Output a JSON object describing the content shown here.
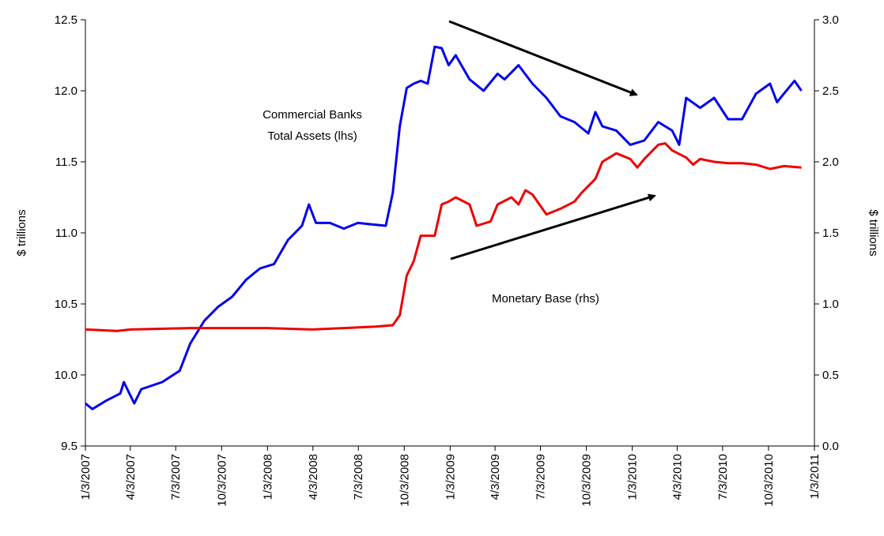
{
  "chart_data": {
    "type": "line",
    "y_label": "$ trillions",
    "y2_label": "$ trillions",
    "annotations": [
      [
        "Commercial Banks",
        "Total Assets (lhs)"
      ],
      [
        "Monetary Base (rhs)"
      ]
    ],
    "xlim": [
      "1/3/2007",
      "1/3/2011"
    ],
    "xticks": [
      "1/3/2007",
      "4/3/2007",
      "7/3/2007",
      "10/3/2007",
      "1/3/2008",
      "4/3/2008",
      "7/3/2008",
      "10/3/2008",
      "1/3/2009",
      "4/3/2009",
      "7/3/2009",
      "10/3/2009",
      "1/3/2010",
      "4/3/2010",
      "7/3/2010",
      "10/3/2010",
      "1/3/2011"
    ],
    "ylim": [
      9.5,
      12.5
    ],
    "yticks": [
      9.5,
      {
        "value": 10,
        "label": "10.0"
      },
      10.5,
      {
        "value": 11,
        "label": "11.0"
      },
      11.5,
      {
        "value": 12,
        "label": "12.0"
      },
      12.5
    ],
    "y2lim": [
      0,
      3
    ],
    "y2ticks": [
      {
        "value": 0,
        "label": "0.0"
      },
      0.5,
      {
        "value": 1,
        "label": "1.0"
      },
      1.5,
      {
        "value": 2,
        "label": "2.0"
      },
      2.5,
      {
        "value": 3,
        "label": "3.0"
      }
    ],
    "series": [
      {
        "name": "Commercial Banks Total Assets",
        "color": "#0000ee",
        "axis": "y",
        "x": [
          "1/3/2007",
          "1/17/2007",
          "2/14/2007",
          "3/14/2007",
          "3/21/2007",
          "4/11/2007",
          "4/25/2007",
          "6/6/2007",
          "7/11/2007",
          "8/1/2007",
          "8/29/2007",
          "9/26/2007",
          "10/24/2007",
          "11/21/2007",
          "12/19/2007",
          "1/16/2008",
          "2/13/2008",
          "3/12/2008",
          "3/26/2008",
          "4/9/2008",
          "5/7/2008",
          "6/4/2008",
          "7/2/2008",
          "7/30/2008",
          "8/27/2008",
          "9/10/2008",
          "9/24/2008",
          "10/8/2008",
          "10/22/2008",
          "11/5/2008",
          "11/19/2008",
          "12/3/2008",
          "12/17/2008",
          "12/31/2008",
          "1/14/2009",
          "2/11/2009",
          "3/11/2009",
          "4/8/2009",
          "4/22/2009",
          "5/20/2009",
          "6/17/2009",
          "7/15/2009",
          "8/12/2009",
          "9/9/2009",
          "10/7/2009",
          "10/21/2009",
          "11/4/2009",
          "12/2/2009",
          "12/30/2009",
          "1/27/2010",
          "2/24/2010",
          "3/24/2010",
          "4/7/2010",
          "4/21/2010",
          "5/19/2010",
          "6/16/2010",
          "7/14/2010",
          "8/11/2010",
          "9/8/2010",
          "10/6/2010",
          "10/20/2010",
          "11/3/2010",
          "11/24/2010",
          "12/8/2010"
        ],
        "values": [
          9.8,
          9.76,
          9.82,
          9.87,
          9.95,
          9.8,
          9.9,
          9.95,
          10.03,
          10.22,
          10.38,
          10.48,
          10.55,
          10.67,
          10.75,
          10.78,
          10.95,
          11.05,
          11.2,
          11.07,
          11.07,
          11.03,
          11.07,
          11.06,
          11.05,
          11.28,
          11.75,
          12.02,
          12.05,
          12.07,
          12.05,
          12.31,
          12.3,
          12.18,
          12.25,
          12.08,
          12.0,
          12.12,
          12.08,
          12.18,
          12.05,
          11.95,
          11.82,
          11.78,
          11.7,
          11.85,
          11.75,
          11.72,
          11.62,
          11.65,
          11.78,
          11.72,
          11.62,
          11.95,
          11.88,
          11.95,
          11.8,
          11.8,
          11.98,
          12.05,
          11.92,
          11.98,
          12.07,
          12.0
        ]
      },
      {
        "name": "Monetary Base",
        "color": "#ee0000",
        "axis": "y2",
        "x": [
          "1/3/2007",
          "3/7/2007",
          "4/4/2007",
          "8/1/2007",
          "1/2/2008",
          "4/2/2008",
          "6/4/2008",
          "8/6/2008",
          "9/10/2008",
          "9/24/2008",
          "10/8/2008",
          "10/22/2008",
          "11/5/2008",
          "12/3/2008",
          "12/17/2008",
          "12/31/2008",
          "1/14/2009",
          "2/11/2009",
          "2/25/2009",
          "3/25/2009",
          "4/8/2009",
          "5/6/2009",
          "5/20/2009",
          "6/3/2009",
          "6/17/2009",
          "7/15/2009",
          "8/12/2009",
          "9/9/2009",
          "9/23/2009",
          "10/21/2009",
          "11/4/2009",
          "12/2/2009",
          "12/30/2009",
          "1/13/2010",
          "1/27/2010",
          "2/24/2010",
          "3/10/2010",
          "3/24/2010",
          "4/21/2010",
          "5/5/2010",
          "5/19/2010",
          "6/16/2010",
          "7/14/2010",
          "8/11/2010",
          "9/8/2010",
          "10/6/2010",
          "11/3/2010",
          "12/8/2010"
        ],
        "values": [
          0.82,
          0.81,
          0.82,
          0.83,
          0.83,
          0.82,
          0.83,
          0.84,
          0.85,
          0.92,
          1.2,
          1.3,
          1.48,
          1.48,
          1.7,
          1.72,
          1.75,
          1.7,
          1.55,
          1.58,
          1.7,
          1.75,
          1.7,
          1.8,
          1.77,
          1.63,
          1.67,
          1.72,
          1.78,
          1.88,
          2.0,
          2.06,
          2.02,
          1.96,
          2.02,
          2.12,
          2.13,
          2.08,
          2.03,
          1.98,
          2.02,
          2.0,
          1.99,
          1.99,
          1.98,
          1.95,
          1.97,
          1.96
        ]
      }
    ]
  }
}
